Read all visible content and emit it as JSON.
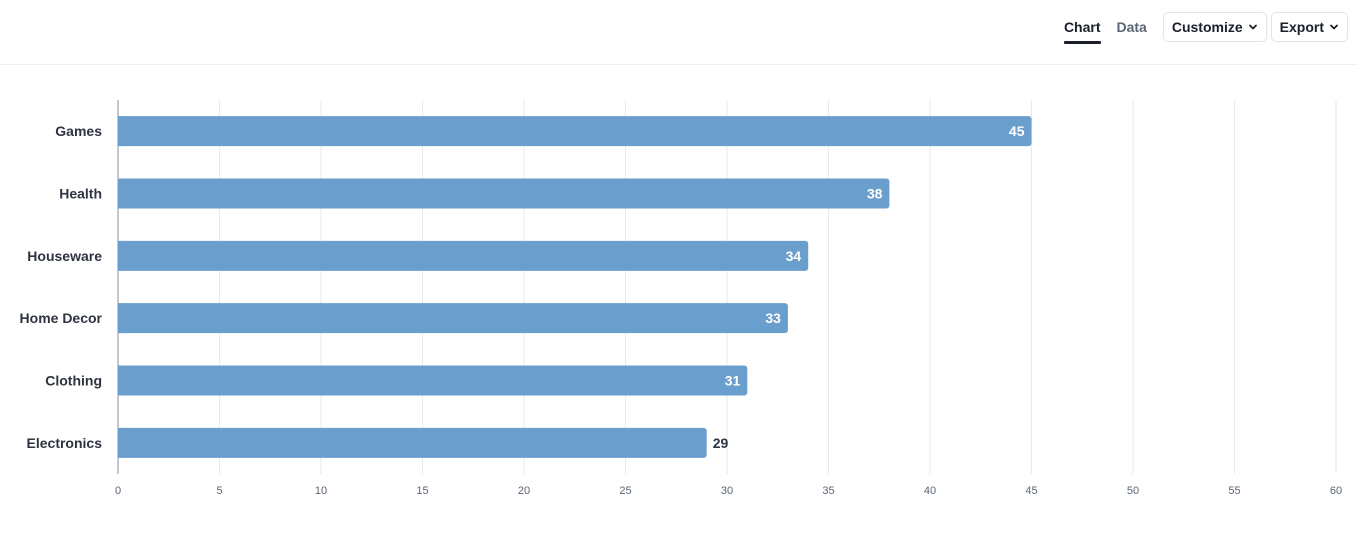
{
  "toolbar": {
    "tabs": [
      {
        "label": "Chart",
        "active": true
      },
      {
        "label": "Data",
        "active": false
      }
    ],
    "customize_label": "Customize",
    "export_label": "Export",
    "chevron_icon": "chevron-down-icon"
  },
  "colors": {
    "bar": "#6a9ecd",
    "grid": "#e8eaed",
    "axis": "#8a929c",
    "label_inside": "#ffffff",
    "label_outside": "#2e3440"
  },
  "chart_data": {
    "type": "bar",
    "orientation": "horizontal",
    "categories": [
      "Games",
      "Health",
      "Houseware",
      "Home Decor",
      "Clothing",
      "Electronics"
    ],
    "values": [
      45,
      38,
      34,
      33,
      31,
      29
    ],
    "xlim": [
      0,
      60
    ],
    "xticks": [
      0,
      5,
      10,
      15,
      20,
      25,
      30,
      35,
      40,
      45,
      50,
      55,
      60
    ],
    "title": "",
    "xlabel": "",
    "ylabel": "",
    "grid": true,
    "data_labels": true
  }
}
